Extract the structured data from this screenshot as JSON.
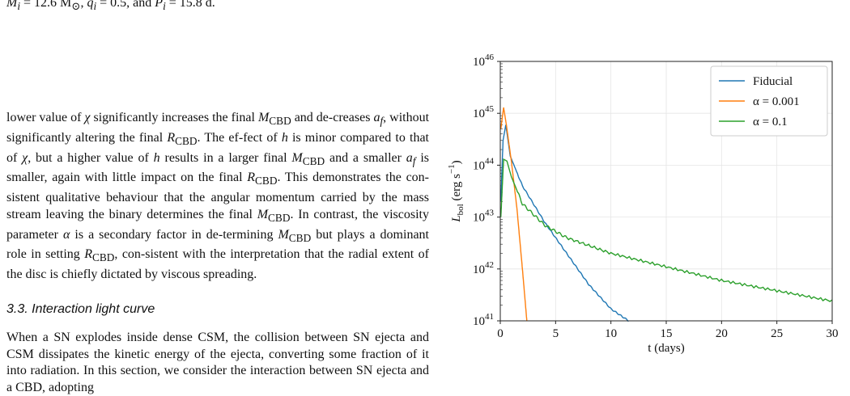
{
  "top_line": "M_i = 12.6 M⊙, q_i = 0.5, and P_i = 15.8 d.",
  "paragraph1": "lower value of χ significantly increases the final M_CBD and decreases a_f, without significantly altering the final R_CBD. The effect of h is minor compared to that of χ, but a higher value of h results in a larger final M_CBD and a smaller a_f is smaller, again with little impact on the final R_CBD. This demonstrates the consistent qualitative behaviour that the angular momentum carried by the mass stream leaving the binary determines the final M_CBD. In contrast, the viscosity parameter α is a secondary factor in determining M_CBD but plays a dominant role in setting R_CBD, consistent with the interpretation that the radial extent of the disc is chiefly dictated by viscous spreading.",
  "section_heading": "3.3. Interaction light curve",
  "paragraph2": "When a SN explodes inside dense CSM, the collision between SN ejecta and CSM dissipates the kinetic energy of the ejecta, converting some fraction of it into radiation. In this section, we consider the interaction between SN ejecta and a CBD, adopting",
  "chart_data": {
    "type": "line",
    "xlabel": "t (days)",
    "ylabel": "L_bol (erg s^-1)",
    "xlim": [
      0,
      30
    ],
    "ylim": [
      1e+41,
      1e+46
    ],
    "yscale": "log",
    "x_ticks": [
      0,
      5,
      10,
      15,
      20,
      25,
      30
    ],
    "y_ticks": [
      "10^41",
      "10^42",
      "10^43",
      "10^44",
      "10^45",
      "10^46"
    ],
    "grid": true,
    "legend_position": "top-right",
    "series": [
      {
        "name": "Fiducial",
        "color": "#1f77b4",
        "points": [
          [
            0.05,
            2e+43
          ],
          [
            0.25,
            3e+44
          ],
          [
            0.5,
            6e+44
          ],
          [
            0.9,
            1.5e+44
          ],
          [
            2,
            4e+43
          ],
          [
            4,
            8e+42
          ],
          [
            6,
            2e+42
          ],
          [
            8,
            5e+41
          ],
          [
            10,
            1.7e+41
          ],
          [
            11.6,
            1e+41
          ]
        ]
      },
      {
        "name": "α = 0.001",
        "color": "#ff7f0e",
        "points": [
          [
            0.05,
            5e+44
          ],
          [
            0.3,
            1.3e+45
          ],
          [
            0.55,
            6e+44
          ],
          [
            1,
            1.2e+44
          ],
          [
            1.5,
            1.5e+43
          ],
          [
            2,
            1e+42
          ],
          [
            2.4,
            1e+41
          ]
        ]
      },
      {
        "name": "α = 0.1",
        "color": "#2ca02c",
        "points": [
          [
            0.05,
            1e+43
          ],
          [
            0.3,
            1.3e+44
          ],
          [
            0.6,
            1.2e+44
          ],
          [
            1,
            6e+43
          ],
          [
            2,
            1.8e+43
          ],
          [
            4,
            7e+42
          ],
          [
            6,
            4e+42
          ],
          [
            10,
            2e+42
          ],
          [
            15,
            1.1e+42
          ],
          [
            20,
            6e+41
          ],
          [
            25,
            3.8e+41
          ],
          [
            30,
            2.4e+41
          ]
        ]
      }
    ]
  }
}
